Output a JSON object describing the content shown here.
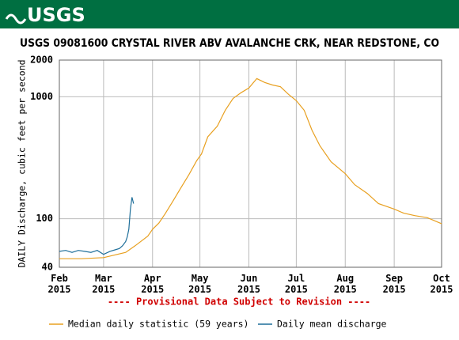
{
  "header": {
    "logo": "USGS"
  },
  "chart_data": {
    "type": "line",
    "title": "USGS 09081600 CRYSTAL RIVER ABV AVALANCHE CRK, NEAR REDSTONE, CO",
    "y_label": "DAILY Discharge, cubic feet per second",
    "annotation": "---- Provisional Data Subject to Revision ----",
    "log_y": true,
    "grid": true,
    "xlim": [
      32,
      274
    ],
    "xticks": [
      {
        "value": 32,
        "label": "Feb\n2015"
      },
      {
        "value": 60,
        "label": "Mar\n2015"
      },
      {
        "value": 91,
        "label": "Apr\n2015"
      },
      {
        "value": 121,
        "label": "May\n2015"
      },
      {
        "value": 152,
        "label": "Jun\n2015"
      },
      {
        "value": 182,
        "label": "Jul\n2015"
      },
      {
        "value": 213,
        "label": "Aug\n2015"
      },
      {
        "value": 244,
        "label": "Sep\n2015"
      },
      {
        "value": 274,
        "label": "Oct\n2015"
      }
    ],
    "ylim": [
      40,
      2000
    ],
    "yticks": [
      40,
      100,
      1000,
      2000
    ],
    "series": [
      {
        "name": "Median daily statistic (59 years)",
        "color": "#e8a020",
        "x": [
          32,
          46,
          60,
          74,
          80,
          88,
          91,
          95,
          99,
          104,
          109,
          114,
          119,
          122,
          126,
          132,
          137,
          142,
          147,
          152,
          157,
          162,
          167,
          172,
          177,
          182,
          187,
          192,
          197,
          204,
          213,
          219,
          227,
          234,
          244,
          250,
          257,
          265,
          274
        ],
        "values": [
          47,
          47,
          48,
          53,
          60,
          72,
          82,
          92,
          110,
          140,
          180,
          230,
          300,
          340,
          470,
          575,
          775,
          970,
          1080,
          1180,
          1410,
          1310,
          1250,
          1210,
          1050,
          930,
          775,
          530,
          396,
          293,
          234,
          190,
          161,
          133,
          120,
          111,
          106,
          102,
          91
        ]
      },
      {
        "name": "Daily mean discharge",
        "color": "#1f6f9a",
        "x": [
          32,
          36,
          40,
          44,
          48,
          52,
          56,
          60,
          64,
          68,
          70,
          72,
          74,
          75,
          76,
          77,
          78,
          79
        ],
        "values": [
          54,
          55,
          53,
          55,
          54,
          53,
          55,
          51,
          54,
          56,
          57,
          60,
          65,
          71,
          82,
          120,
          150,
          133
        ]
      }
    ]
  }
}
